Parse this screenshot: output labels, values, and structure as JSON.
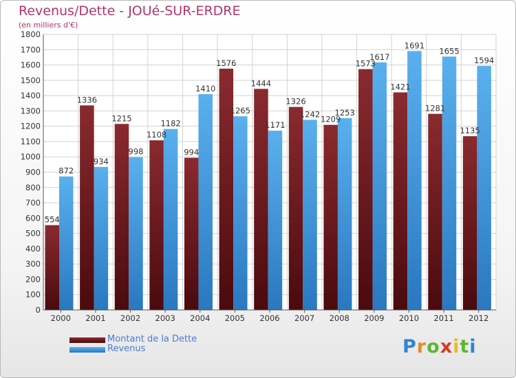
{
  "title": "Revenus/Dette - JOUé-SUR-ERDRE",
  "subtitle": "(en milliers d'€)",
  "colors": {
    "debt": "#7a1f24",
    "revenue": "#4aa3e6",
    "text": "#b4326e",
    "legend_text": "#4a7bd6"
  },
  "legend": {
    "debt_label": "Montant de la Dette",
    "revenue_label": "Revenus"
  },
  "logo": {
    "text": "Proxiti",
    "letters": [
      "P",
      "r",
      "o",
      "x",
      "i",
      "t",
      "i"
    ],
    "letter_colors": [
      "#2a86d6",
      "#e8892a",
      "#5cb82e",
      "#d63a2a",
      "#e8b92a",
      "#5cb82e",
      "#2a86d6"
    ]
  },
  "chart_data": {
    "type": "bar",
    "categories": [
      "2000",
      "2001",
      "2002",
      "2003",
      "2004",
      "2005",
      "2006",
      "2007",
      "2008",
      "2009",
      "2010",
      "2011",
      "2012"
    ],
    "series": [
      {
        "name": "Montant de la Dette",
        "values": [
          554,
          1336,
          1215,
          1108,
          994,
          1576,
          1444,
          1326,
          1209,
          1573,
          1421,
          1281,
          1135
        ]
      },
      {
        "name": "Revenus",
        "values": [
          872,
          934,
          998,
          1182,
          1410,
          1265,
          1171,
          1242,
          1253,
          1617,
          1691,
          1655,
          1594
        ]
      }
    ],
    "ylim": [
      0,
      1800
    ],
    "ytick_step": 100,
    "grid": true,
    "legend_position": "bottom-left"
  }
}
